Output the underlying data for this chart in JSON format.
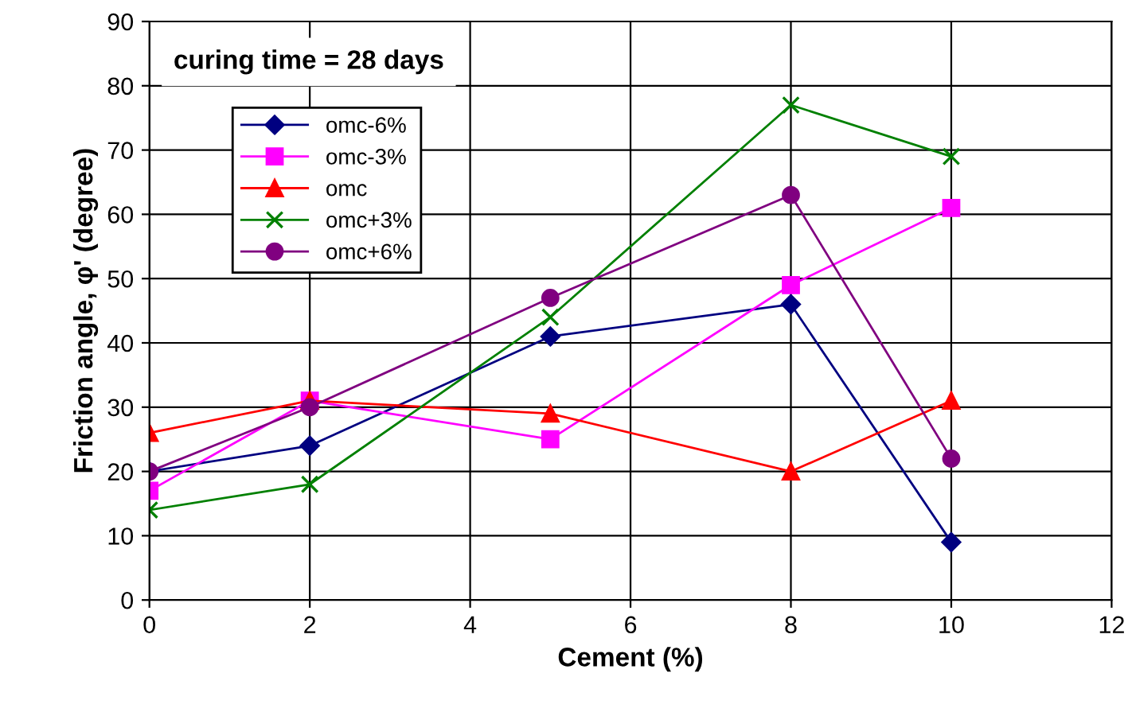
{
  "chart_data": {
    "type": "line",
    "xlabel": "Cement (%)",
    "ylabel": "Friction angle, φ' (degree)",
    "annotations": [
      "curing time = 28 days"
    ],
    "x": [
      0,
      2,
      5,
      8,
      10
    ],
    "series": [
      {
        "name": "omc-6%",
        "color": "#000080",
        "marker": "diamond",
        "values": [
          20,
          24,
          41,
          46,
          9
        ]
      },
      {
        "name": "omc-3%",
        "color": "#ff00ff",
        "marker": "square",
        "values": [
          17,
          31,
          25,
          49,
          61
        ]
      },
      {
        "name": "omc",
        "color": "#ff0000",
        "marker": "triangle",
        "values": [
          26,
          31,
          29,
          20,
          31
        ]
      },
      {
        "name": "omc+3%",
        "color": "#008000",
        "marker": "cross",
        "values": [
          14,
          18,
          44,
          77,
          69
        ]
      },
      {
        "name": "omc+6%",
        "color": "#800080",
        "marker": "circle",
        "values": [
          20,
          30,
          47,
          63,
          22
        ]
      }
    ],
    "xlim": [
      0,
      12
    ],
    "xticks": [
      0,
      2,
      4,
      6,
      8,
      10,
      12
    ],
    "ylim": [
      0,
      90
    ],
    "yticks": [
      0,
      10,
      20,
      30,
      40,
      50,
      60,
      70,
      80,
      90
    ],
    "grid": true,
    "legend": "top left",
    "line_style": "solid"
  }
}
